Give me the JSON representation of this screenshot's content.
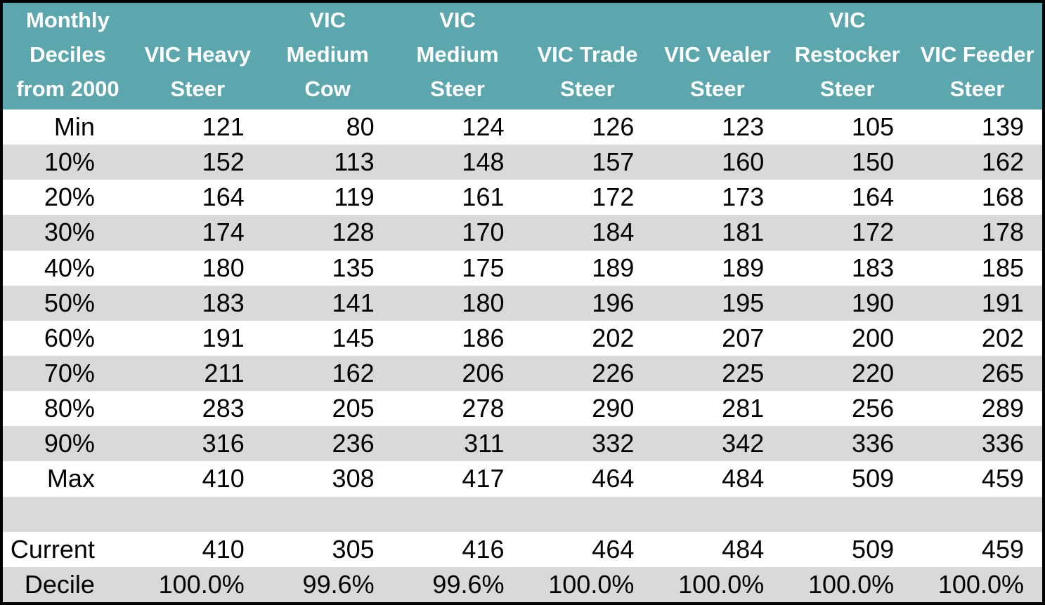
{
  "colors": {
    "header_bg": "#5CA7AE",
    "header_text": "#FFFFFF",
    "stripe_bg": "#D9D9D9",
    "row_bg": "#FFFFFF",
    "body_text": "#000000",
    "border": "#000000"
  },
  "table": {
    "headers": [
      "Monthly\nDeciles\nfrom 2000",
      "VIC Heavy\nSteer",
      "VIC\nMedium\nCow",
      "VIC\nMedium\nSteer",
      "VIC Trade\nSteer",
      "VIC Vealer\nSteer",
      "VIC\nRestocker\nSteer",
      "VIC Feeder\nSteer"
    ],
    "rows": [
      {
        "label": "Min",
        "values": [
          "121",
          "80",
          "124",
          "126",
          "123",
          "105",
          "139"
        ]
      },
      {
        "label": "10%",
        "values": [
          "152",
          "113",
          "148",
          "157",
          "160",
          "150",
          "162"
        ]
      },
      {
        "label": "20%",
        "values": [
          "164",
          "119",
          "161",
          "172",
          "173",
          "164",
          "168"
        ]
      },
      {
        "label": "30%",
        "values": [
          "174",
          "128",
          "170",
          "184",
          "181",
          "172",
          "178"
        ]
      },
      {
        "label": "40%",
        "values": [
          "180",
          "135",
          "175",
          "189",
          "189",
          "183",
          "185"
        ]
      },
      {
        "label": "50%",
        "values": [
          "183",
          "141",
          "180",
          "196",
          "195",
          "190",
          "191"
        ]
      },
      {
        "label": "60%",
        "values": [
          "191",
          "145",
          "186",
          "202",
          "207",
          "200",
          "202"
        ]
      },
      {
        "label": "70%",
        "values": [
          "211",
          "162",
          "206",
          "226",
          "225",
          "220",
          "265"
        ]
      },
      {
        "label": "80%",
        "values": [
          "283",
          "205",
          "278",
          "290",
          "281",
          "256",
          "289"
        ]
      },
      {
        "label": "90%",
        "values": [
          "316",
          "236",
          "311",
          "332",
          "342",
          "336",
          "336"
        ]
      },
      {
        "label": "Max",
        "values": [
          "410",
          "308",
          "417",
          "464",
          "484",
          "509",
          "459"
        ]
      },
      {
        "label": "",
        "values": [
          "",
          "",
          "",
          "",
          "",
          "",
          ""
        ]
      },
      {
        "label": "Current",
        "values": [
          "410",
          "305",
          "416",
          "464",
          "484",
          "509",
          "459"
        ]
      },
      {
        "label": "Decile",
        "values": [
          "100.0%",
          "99.6%",
          "99.6%",
          "100.0%",
          "100.0%",
          "100.0%",
          "100.0%"
        ]
      }
    ]
  },
  "chart_data": {
    "type": "table",
    "title": "Monthly Deciles from 2000",
    "columns": [
      "Monthly Deciles from 2000",
      "VIC Heavy Steer",
      "VIC Medium Cow",
      "VIC Medium Steer",
      "VIC Trade Steer",
      "VIC Vealer Steer",
      "VIC Restocker Steer",
      "VIC Feeder Steer"
    ],
    "rows": [
      [
        "Min",
        121,
        80,
        124,
        126,
        123,
        105,
        139
      ],
      [
        "10%",
        152,
        113,
        148,
        157,
        160,
        150,
        162
      ],
      [
        "20%",
        164,
        119,
        161,
        172,
        173,
        164,
        168
      ],
      [
        "30%",
        174,
        128,
        170,
        184,
        181,
        172,
        178
      ],
      [
        "40%",
        180,
        135,
        175,
        189,
        189,
        183,
        185
      ],
      [
        "50%",
        183,
        141,
        180,
        196,
        195,
        190,
        191
      ],
      [
        "60%",
        191,
        145,
        186,
        202,
        207,
        200,
        202
      ],
      [
        "70%",
        211,
        162,
        206,
        226,
        225,
        220,
        265
      ],
      [
        "80%",
        283,
        205,
        278,
        290,
        281,
        256,
        289
      ],
      [
        "90%",
        316,
        236,
        311,
        332,
        342,
        336,
        336
      ],
      [
        "Max",
        410,
        308,
        417,
        464,
        484,
        509,
        459
      ],
      [
        "",
        "",
        "",
        "",
        "",
        "",
        "",
        ""
      ],
      [
        "Current",
        410,
        305,
        416,
        464,
        484,
        509,
        459
      ],
      [
        "Decile",
        "100.0%",
        "99.6%",
        "99.6%",
        "100.0%",
        "100.0%",
        "100.0%",
        "100.0%"
      ]
    ]
  }
}
